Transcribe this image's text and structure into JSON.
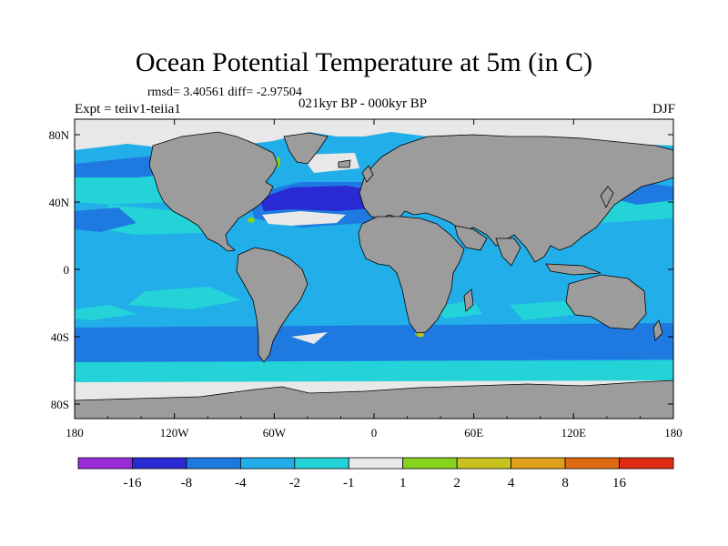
{
  "header": {
    "title": "Ocean Potential Temperature at 5m (in C)",
    "stats": "rmsd= 3.40561 diff= -2.97504",
    "experiment": "Expt = teiiv1-teiia1",
    "period": "021kyr BP - 000kyr BP",
    "season": "DJF"
  },
  "axes": {
    "x_ticks": [
      "180",
      "120W",
      "60W",
      "0",
      "60E",
      "120E",
      "180"
    ],
    "y_ticks": [
      "80N",
      "40N",
      "0",
      "40S",
      "80S"
    ]
  },
  "colorbar": {
    "labels": [
      "-16",
      "-8",
      "-4",
      "-2",
      "-1",
      "1",
      "2",
      "4",
      "8",
      "16"
    ],
    "colors": [
      "#9a2bd9",
      "#2a2ad4",
      "#1e7ae0",
      "#22aee8",
      "#23d3d7",
      "#e8e8e8",
      "#86d21e",
      "#c8c21e",
      "#e0a01c",
      "#e06a14",
      "#e02b12"
    ]
  },
  "map": {
    "colors": {
      "land": "#9c9c9c",
      "ice": "#e8e8e8",
      "ocean_base": "#22aee8",
      "ocean_light": "#23d3d7",
      "ocean_mid": "#1e7ae0",
      "ocean_deep": "#2a2ad4",
      "warm_small": "#86d21e",
      "warm_yellow": "#c8c21e"
    }
  }
}
